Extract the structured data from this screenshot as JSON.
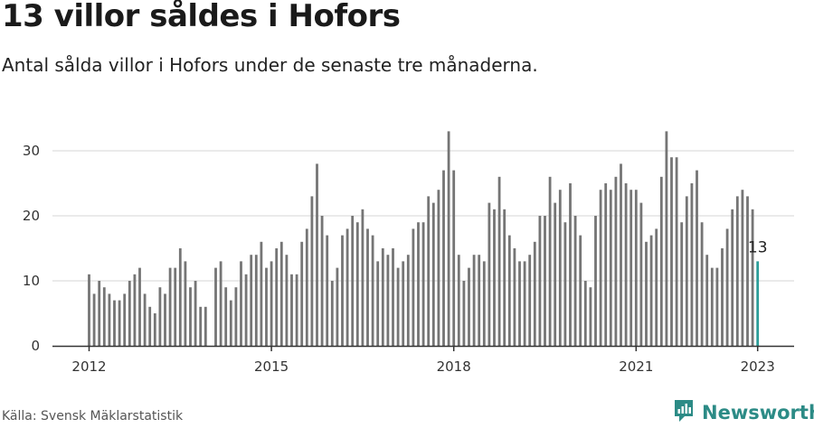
{
  "title": "13 villor såldes i Hofors",
  "subtitle": "Antal sålda villor i Hofors under de senaste tre månaderna.",
  "source": "Källa: Svensk Mäklarstatistik",
  "brand": {
    "name": "Newsworthy",
    "icon": "newsworthy-logo-icon",
    "color": "#2c8b86"
  },
  "colors": {
    "bar": "#757575",
    "highlight": "#2a9d98",
    "grid": "#dddddd",
    "axis": "#333333"
  },
  "chart_data": {
    "type": "bar",
    "title": "13 villor såldes i Hofors",
    "subtitle": "Antal sålda villor i Hofors under de senaste tre månaderna.",
    "xlabel": "",
    "ylabel": "",
    "ylim": [
      0,
      35
    ],
    "yticks": [
      0,
      10,
      20,
      30
    ],
    "xticks": [
      {
        "label": "2012",
        "index": 0
      },
      {
        "label": "2015",
        "index": 36
      },
      {
        "label": "2018",
        "index": 72
      },
      {
        "label": "2021",
        "index": 108
      },
      {
        "label": "2023",
        "index": 132
      }
    ],
    "x_start": "2012-01",
    "x_end": "2023-01",
    "series": [
      {
        "values": [
          11,
          8,
          10,
          9,
          8,
          7,
          7,
          8,
          10,
          11,
          12,
          8,
          6,
          5,
          9,
          8,
          12,
          12,
          15,
          13,
          9,
          10,
          6,
          6,
          null,
          12,
          13,
          9,
          7,
          9,
          13,
          11,
          14,
          14,
          16,
          12,
          13,
          15,
          16,
          14,
          11,
          11,
          16,
          18,
          23,
          28,
          20,
          17,
          10,
          12,
          17,
          18,
          20,
          19,
          21,
          18,
          17,
          13,
          15,
          14,
          15,
          12,
          13,
          14,
          18,
          19,
          19,
          23,
          22,
          24,
          27,
          33,
          27,
          14,
          10,
          12,
          14,
          14,
          13,
          22,
          21,
          26,
          21,
          17,
          15,
          13,
          13,
          14,
          16,
          20,
          20,
          26,
          22,
          24,
          19,
          25,
          20,
          17,
          10,
          9,
          20,
          24,
          25,
          24,
          26,
          28,
          25,
          24,
          24,
          22,
          16,
          17,
          18,
          26,
          33,
          29,
          29,
          19,
          23,
          25,
          27,
          19,
          14,
          12,
          12,
          15,
          18,
          21,
          23,
          24,
          23,
          21,
          13
        ]
      }
    ],
    "highlight": {
      "index": 132,
      "value": 13,
      "label": "13"
    },
    "grid": true,
    "legend": "none"
  }
}
